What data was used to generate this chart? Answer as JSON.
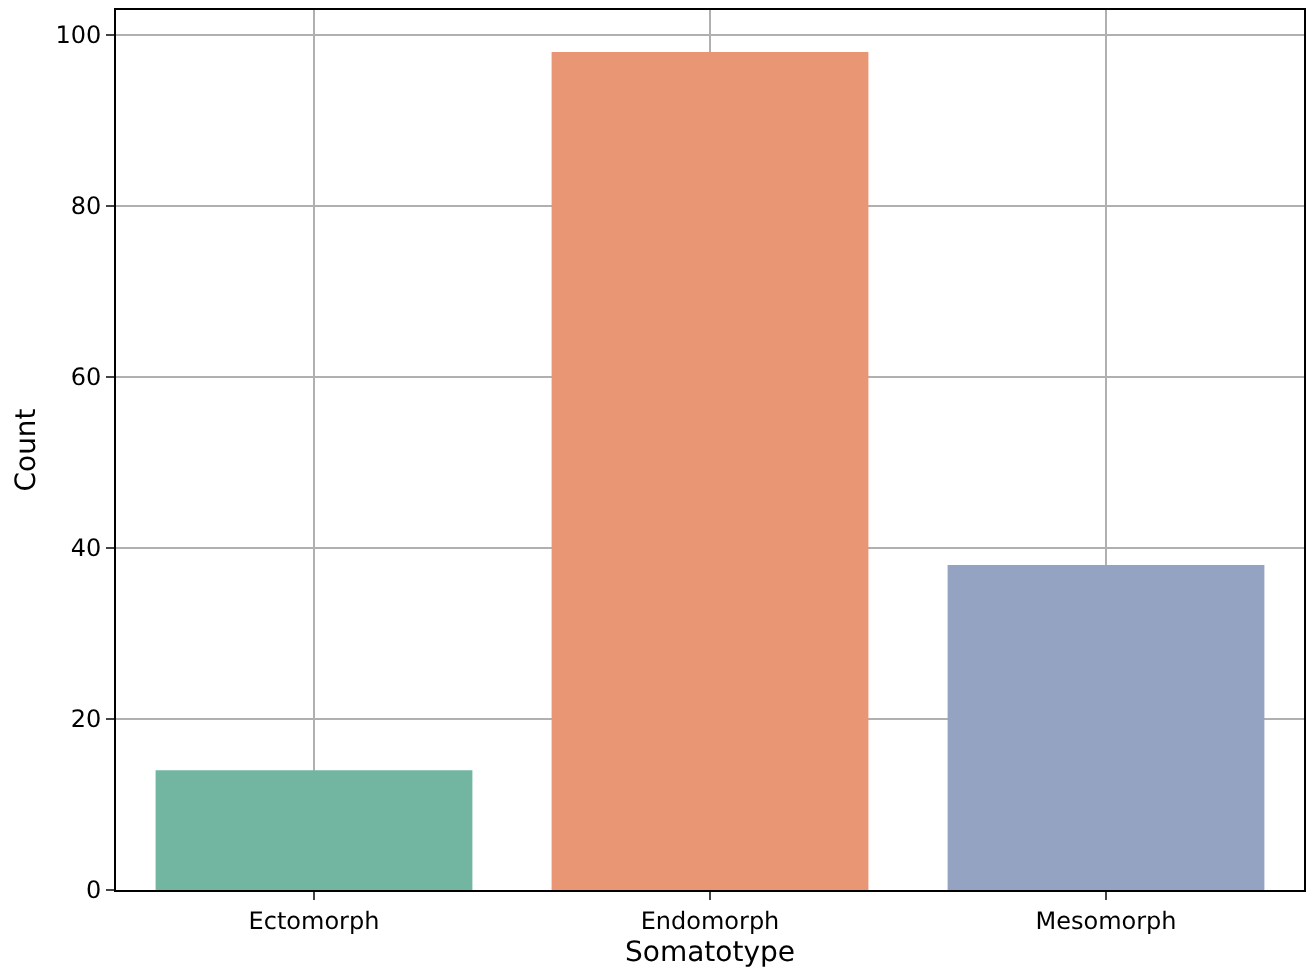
{
  "chart_data": {
    "type": "bar",
    "xlabel": "Somatotype",
    "ylabel": "Count",
    "categories": [
      "Ectomorph",
      "Endomorph",
      "Mesomorph"
    ],
    "values": [
      14,
      98,
      38
    ],
    "colors": [
      "#72b6a1",
      "#e99675",
      "#95a3c3"
    ],
    "ylim": [
      0,
      102.9
    ],
    "yticks": [
      0,
      20,
      40,
      60,
      80,
      100
    ],
    "grid": true
  }
}
